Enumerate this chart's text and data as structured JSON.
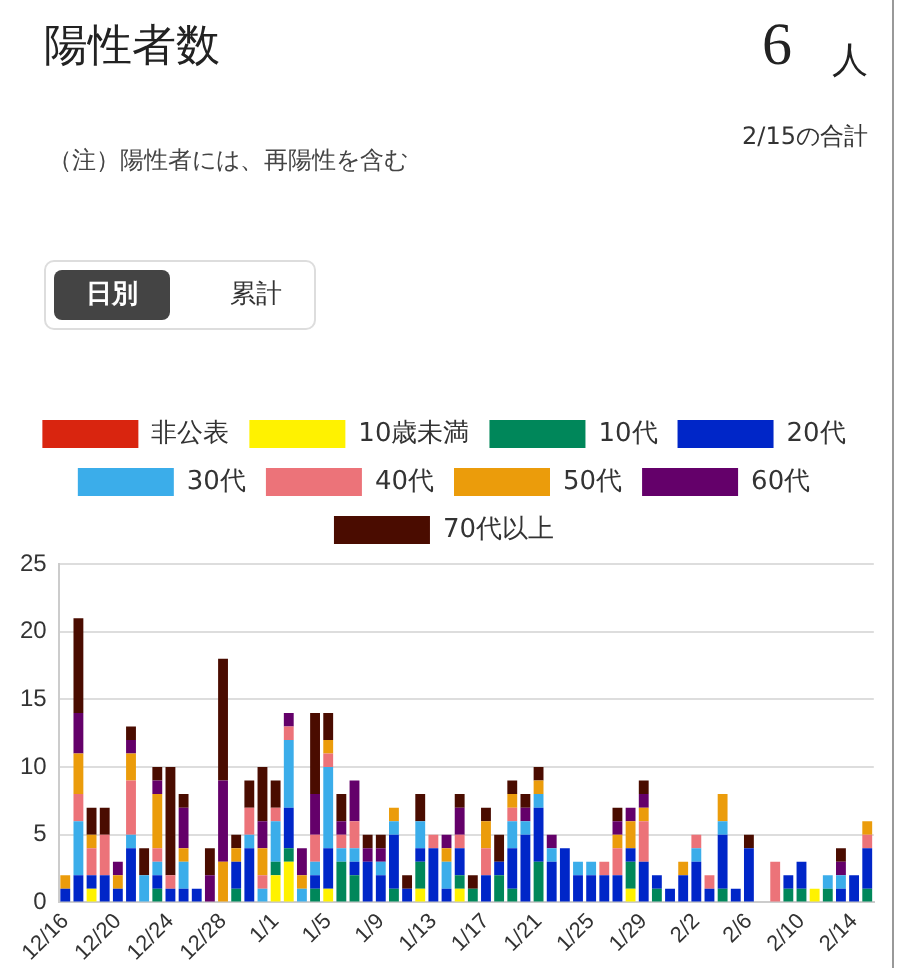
{
  "chart_data": {
    "type": "bar",
    "stacked": true,
    "title": "陽性者数",
    "subtitle": "（注）陽性者には、再陽性を含む",
    "annotations": [
      "6",
      "人",
      "2/15の合計",
      "日別",
      "累計"
    ],
    "categories": [
      "12/16",
      null,
      null,
      null,
      "12/20",
      null,
      null,
      null,
      "12/24",
      null,
      null,
      null,
      "12/28",
      null,
      null,
      null,
      "1/1",
      null,
      null,
      null,
      "1/5",
      null,
      null,
      null,
      "1/9",
      null,
      null,
      null,
      "1/13",
      null,
      null,
      null,
      "1/17",
      null,
      null,
      null,
      "1/21",
      null,
      null,
      null,
      "1/25",
      null,
      null,
      null,
      "1/29",
      null,
      null,
      null,
      "2/2",
      null,
      null,
      null,
      "2/6",
      null,
      null,
      null,
      "2/10",
      null,
      null,
      null,
      "2/14",
      null
    ],
    "series": [
      {
        "name": "非公表",
        "color": "#d9250f",
        "values": [
          0,
          0,
          0,
          0,
          0,
          0,
          0,
          0,
          0,
          0,
          0,
          0,
          0,
          0,
          0,
          0,
          0,
          0,
          0,
          0,
          0,
          0,
          0,
          0,
          0,
          0,
          0,
          0,
          0,
          0,
          0,
          0,
          0,
          0,
          0,
          0,
          0,
          0,
          0,
          0,
          0,
          0,
          0,
          0,
          0,
          0,
          0,
          0,
          0,
          0,
          0,
          0,
          0,
          0,
          0,
          0,
          0,
          0,
          0,
          0,
          0,
          0
        ]
      },
      {
        "name": "10歳未満",
        "color": "#fff200",
        "values": [
          0,
          0,
          1,
          0,
          0,
          0,
          0,
          0,
          0,
          0,
          0,
          0,
          0,
          0,
          0,
          0,
          2,
          3,
          0,
          0,
          1,
          0,
          0,
          0,
          0,
          0,
          0,
          1,
          0,
          0,
          1,
          0,
          0,
          0,
          0,
          0,
          0,
          0,
          0,
          0,
          0,
          0,
          0,
          1,
          0,
          0,
          0,
          0,
          0,
          0,
          0,
          0,
          0,
          0,
          0,
          0,
          0,
          1,
          0,
          0,
          0,
          0
        ]
      },
      {
        "name": "10代",
        "color": "#00875a",
        "values": [
          0,
          0,
          0,
          0,
          0,
          0,
          0,
          1,
          0,
          0,
          0,
          0,
          0,
          1,
          0,
          0,
          1,
          1,
          0,
          1,
          0,
          3,
          2,
          0,
          0,
          1,
          0,
          2,
          0,
          0,
          1,
          1,
          0,
          2,
          1,
          0,
          3,
          0,
          0,
          0,
          0,
          0,
          0,
          2,
          0,
          1,
          0,
          0,
          0,
          0,
          1,
          0,
          0,
          0,
          0,
          1,
          1,
          0,
          1,
          0,
          0,
          1
        ]
      },
      {
        "name": "20代",
        "color": "#0026c8",
        "values": [
          1,
          2,
          1,
          2,
          1,
          4,
          0,
          1,
          1,
          1,
          1,
          0,
          0,
          2,
          4,
          0,
          0,
          3,
          0,
          1,
          3,
          0,
          1,
          3,
          2,
          4,
          1,
          1,
          4,
          1,
          2,
          0,
          2,
          1,
          3,
          5,
          4,
          3,
          4,
          2,
          2,
          2,
          2,
          1,
          3,
          1,
          1,
          2,
          3,
          1,
          4,
          1,
          4,
          0,
          0,
          1,
          2,
          0,
          0,
          1,
          2,
          3
        ]
      },
      {
        "name": "30代",
        "color": "#3badea",
        "values": [
          0,
          4,
          0,
          0,
          0,
          1,
          2,
          1,
          0,
          2,
          0,
          0,
          0,
          0,
          1,
          1,
          3,
          5,
          1,
          1,
          6,
          1,
          1,
          0,
          1,
          1,
          0,
          2,
          0,
          2,
          0,
          0,
          0,
          0,
          2,
          1,
          1,
          1,
          0,
          1,
          1,
          0,
          0,
          0,
          0,
          0,
          0,
          0,
          1,
          0,
          1,
          0,
          0,
          0,
          0,
          0,
          0,
          0,
          1,
          1,
          0,
          0
        ]
      },
      {
        "name": "40代",
        "color": "#ec7379",
        "values": [
          0,
          2,
          2,
          3,
          0,
          4,
          0,
          1,
          1,
          0,
          0,
          0,
          0,
          0,
          2,
          1,
          1,
          1,
          0,
          2,
          1,
          1,
          2,
          0,
          0,
          0,
          0,
          0,
          1,
          0,
          1,
          0,
          2,
          0,
          1,
          0,
          0,
          0,
          0,
          0,
          0,
          1,
          2,
          0,
          3,
          0,
          0,
          0,
          1,
          1,
          0,
          0,
          0,
          0,
          3,
          0,
          0,
          0,
          0,
          0,
          0,
          1
        ]
      },
      {
        "name": "50代",
        "color": "#eb9c0b",
        "values": [
          1,
          3,
          1,
          0,
          1,
          2,
          0,
          4,
          0,
          1,
          0,
          0,
          3,
          1,
          0,
          2,
          0,
          0,
          1,
          0,
          1,
          0,
          0,
          0,
          0,
          1,
          0,
          0,
          0,
          1,
          0,
          0,
          2,
          0,
          1,
          0,
          1,
          0,
          0,
          0,
          0,
          0,
          1,
          2,
          1,
          0,
          0,
          1,
          0,
          0,
          2,
          0,
          0,
          0,
          0,
          0,
          0,
          0,
          0,
          0,
          0,
          1
        ]
      },
      {
        "name": "60代",
        "color": "#64006a",
        "values": [
          0,
          3,
          0,
          0,
          1,
          1,
          0,
          1,
          0,
          3,
          0,
          2,
          6,
          0,
          0,
          2,
          0,
          1,
          2,
          3,
          0,
          1,
          3,
          1,
          1,
          0,
          0,
          0,
          0,
          1,
          2,
          0,
          0,
          0,
          0,
          1,
          0,
          1,
          0,
          0,
          0,
          0,
          1,
          1,
          1,
          0,
          0,
          0,
          0,
          0,
          0,
          0,
          0,
          0,
          0,
          0,
          0,
          0,
          0,
          1,
          0,
          0
        ]
      },
      {
        "name": "70代以上",
        "color": "#4a0c00",
        "values": [
          0,
          7,
          2,
          2,
          0,
          1,
          2,
          1,
          8,
          1,
          0,
          2,
          9,
          1,
          2,
          4,
          2,
          0,
          0,
          6,
          2,
          2,
          0,
          1,
          1,
          0,
          1,
          2,
          0,
          0,
          1,
          1,
          1,
          2,
          1,
          1,
          1,
          0,
          0,
          0,
          0,
          0,
          1,
          0,
          1,
          0,
          0,
          0,
          0,
          0,
          0,
          0,
          1,
          0,
          0,
          0,
          0,
          0,
          0,
          1,
          0,
          0
        ]
      }
    ],
    "ylim": [
      0,
      25
    ],
    "yticks": [
      0,
      5,
      10,
      15,
      20,
      25
    ],
    "grid": "y",
    "legend": "top"
  }
}
